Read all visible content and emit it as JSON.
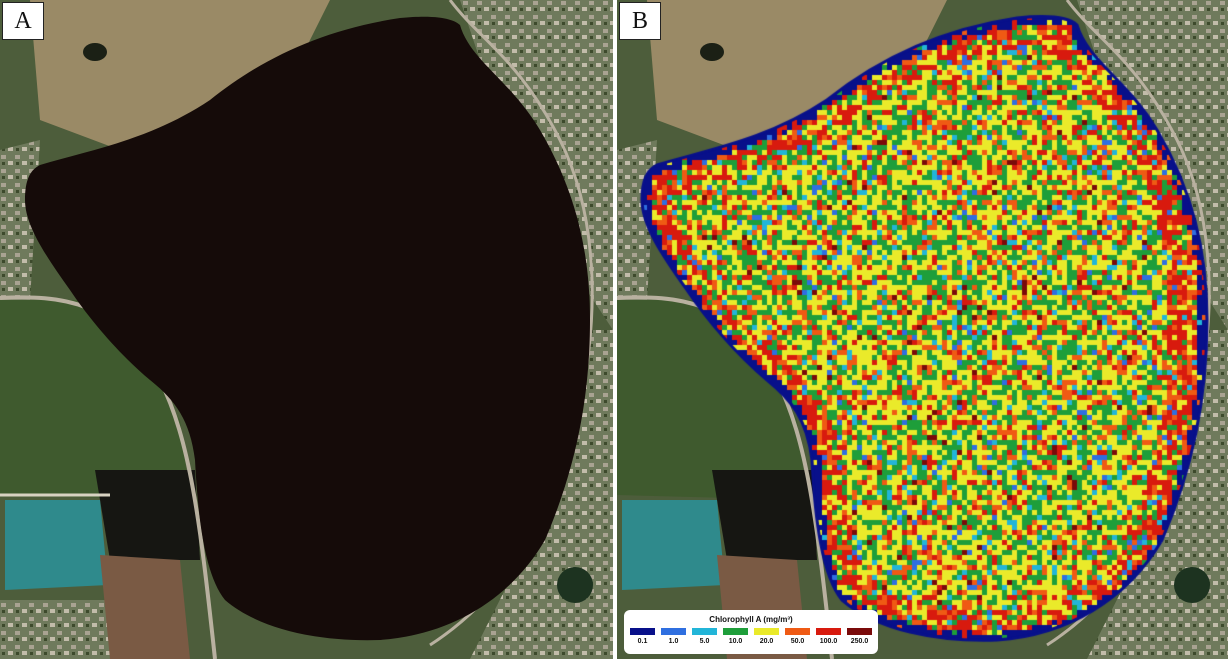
{
  "panels": {
    "a": {
      "label": "A"
    },
    "b": {
      "label": "B"
    }
  },
  "legend": {
    "title": "Chlorophyll A (mg/m³)",
    "classes": [
      {
        "label": "0.1",
        "color": "#08108a"
      },
      {
        "label": "1.0",
        "color": "#2f6fe0"
      },
      {
        "label": "5.0",
        "color": "#22b5d8"
      },
      {
        "label": "10.0",
        "color": "#1e9e3a"
      },
      {
        "label": "20.0",
        "color": "#eaea2a"
      },
      {
        "label": "50.0",
        "color": "#ef5a14"
      },
      {
        "label": "100.0",
        "color": "#d81a0e"
      },
      {
        "label": "250.0",
        "color": "#7a0a0a"
      }
    ]
  },
  "colors": {
    "lake_water": "#150b09",
    "land": "#4b5a3a",
    "pond": "#2f8a8c",
    "road": "#b9b1a0"
  }
}
